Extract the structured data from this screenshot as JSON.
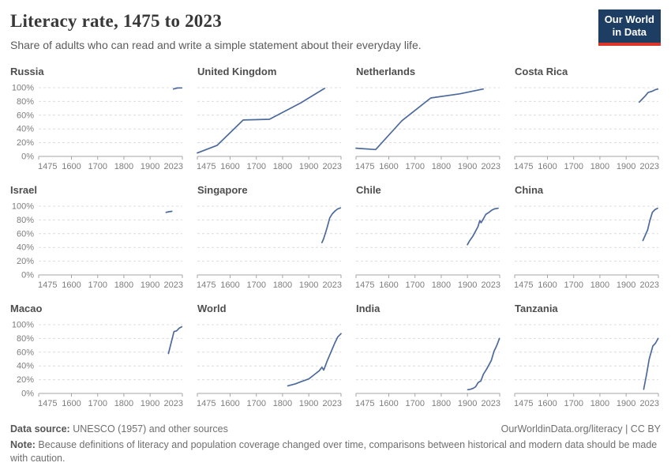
{
  "header": {
    "title": "Literacy rate, 1475 to 2023",
    "subtitle": "Share of adults who can read and write a simple statement about their everyday life."
  },
  "logo": {
    "line1": "Our World",
    "line2": "in Data",
    "bg_color": "#1d3d63",
    "accent_color": "#dc362b"
  },
  "footer": {
    "datasource_label": "Data source:",
    "datasource_text": " UNESCO (1957) and other sources",
    "link_text": "OurWorldinData.org/literacy | CC BY",
    "note_label": "Note:",
    "note_text": " Because definitions of literacy and population coverage changed over time, comparisons between historical and modern data should be made with caution."
  },
  "chart_data": {
    "type": "line",
    "title": "Literacy rate, 1475 to 2023",
    "subtitle": "Share of adults who can read and write a simple statement about their everyday life.",
    "layout": "small-multiples 4x3",
    "x_range": [
      1475,
      2023
    ],
    "y_range": [
      0,
      100
    ],
    "unit": "%",
    "grid": true,
    "line_color": "#4c6a9c",
    "x_ticks": [
      1475,
      1600,
      1700,
      1800,
      1900,
      2023
    ],
    "x_tick_labels": [
      "1475",
      "1600",
      "1700",
      "1800",
      "1900",
      "2023"
    ],
    "y_ticks": [
      100,
      80,
      60,
      40,
      20,
      0
    ],
    "y_tick_labels": [
      "100%",
      "80%",
      "60%",
      "40%",
      "20%",
      "0%"
    ],
    "panels": [
      {
        "name": "Russia",
        "points": [
          [
            1989,
            98
          ],
          [
            2002,
            99.4
          ],
          [
            2010,
            99.7
          ],
          [
            2021,
            99.7
          ]
        ]
      },
      {
        "name": "United Kingdom",
        "points": [
          [
            1475,
            5
          ],
          [
            1550,
            16
          ],
          [
            1650,
            53
          ],
          [
            1750,
            54
          ],
          [
            1870,
            78
          ],
          [
            1960,
            99
          ]
        ]
      },
      {
        "name": "Netherlands",
        "points": [
          [
            1475,
            12
          ],
          [
            1550,
            10
          ],
          [
            1650,
            52
          ],
          [
            1760,
            85
          ],
          [
            1870,
            91
          ],
          [
            1960,
            98
          ]
        ]
      },
      {
        "name": "Costa Rica",
        "points": [
          [
            1950,
            79
          ],
          [
            1963,
            84
          ],
          [
            1973,
            88
          ],
          [
            1984,
            93
          ],
          [
            2000,
            95
          ],
          [
            2011,
            97
          ],
          [
            2021,
            98
          ]
        ]
      },
      {
        "name": "Israel",
        "points": [
          [
            1961,
            91
          ],
          [
            1972,
            92
          ],
          [
            1983,
            92.5
          ]
        ]
      },
      {
        "name": "Singapore",
        "points": [
          [
            1950,
            47
          ],
          [
            1957,
            53
          ],
          [
            1970,
            69
          ],
          [
            1980,
            83
          ],
          [
            1990,
            89
          ],
          [
            2000,
            93
          ],
          [
            2010,
            96
          ],
          [
            2021,
            97.5
          ]
        ]
      },
      {
        "name": "Chile",
        "points": [
          [
            1900,
            44
          ],
          [
            1907,
            49
          ],
          [
            1920,
            56
          ],
          [
            1930,
            63
          ],
          [
            1940,
            70
          ],
          [
            1947,
            79
          ],
          [
            1952,
            76
          ],
          [
            1960,
            81
          ],
          [
            1970,
            88
          ],
          [
            1982,
            91
          ],
          [
            1992,
            94
          ],
          [
            2002,
            96
          ],
          [
            2017,
            97
          ]
        ]
      },
      {
        "name": "China",
        "points": [
          [
            1964,
            50
          ],
          [
            1982,
            65.5
          ],
          [
            1990,
            78
          ],
          [
            2000,
            91
          ],
          [
            2010,
            95
          ],
          [
            2020,
            97
          ]
        ]
      },
      {
        "name": "Macao",
        "points": [
          [
            1970,
            58
          ],
          [
            1991,
            90
          ],
          [
            2001,
            91
          ],
          [
            2011,
            95
          ],
          [
            2021,
            97
          ]
        ]
      },
      {
        "name": "World",
        "points": [
          [
            1820,
            11
          ],
          [
            1850,
            14
          ],
          [
            1870,
            17
          ],
          [
            1900,
            21
          ],
          [
            1920,
            27
          ],
          [
            1940,
            33
          ],
          [
            1950,
            38
          ],
          [
            1957,
            34
          ],
          [
            1970,
            47
          ],
          [
            1980,
            56
          ],
          [
            1990,
            65
          ],
          [
            2000,
            74
          ],
          [
            2010,
            82
          ],
          [
            2023,
            87
          ]
        ]
      },
      {
        "name": "India",
        "points": [
          [
            1901,
            5.4
          ],
          [
            1911,
            6
          ],
          [
            1921,
            7.2
          ],
          [
            1931,
            9.5
          ],
          [
            1941,
            16
          ],
          [
            1951,
            18
          ],
          [
            1961,
            28
          ],
          [
            1971,
            34
          ],
          [
            1981,
            41
          ],
          [
            1991,
            48
          ],
          [
            2001,
            61
          ],
          [
            2011,
            69
          ],
          [
            2022,
            80
          ]
        ]
      },
      {
        "name": "Tanzania",
        "points": [
          [
            1967,
            6
          ],
          [
            1978,
            28
          ],
          [
            1988,
            50
          ],
          [
            2002,
            69
          ],
          [
            2012,
            73
          ],
          [
            2022,
            80
          ]
        ]
      }
    ]
  }
}
